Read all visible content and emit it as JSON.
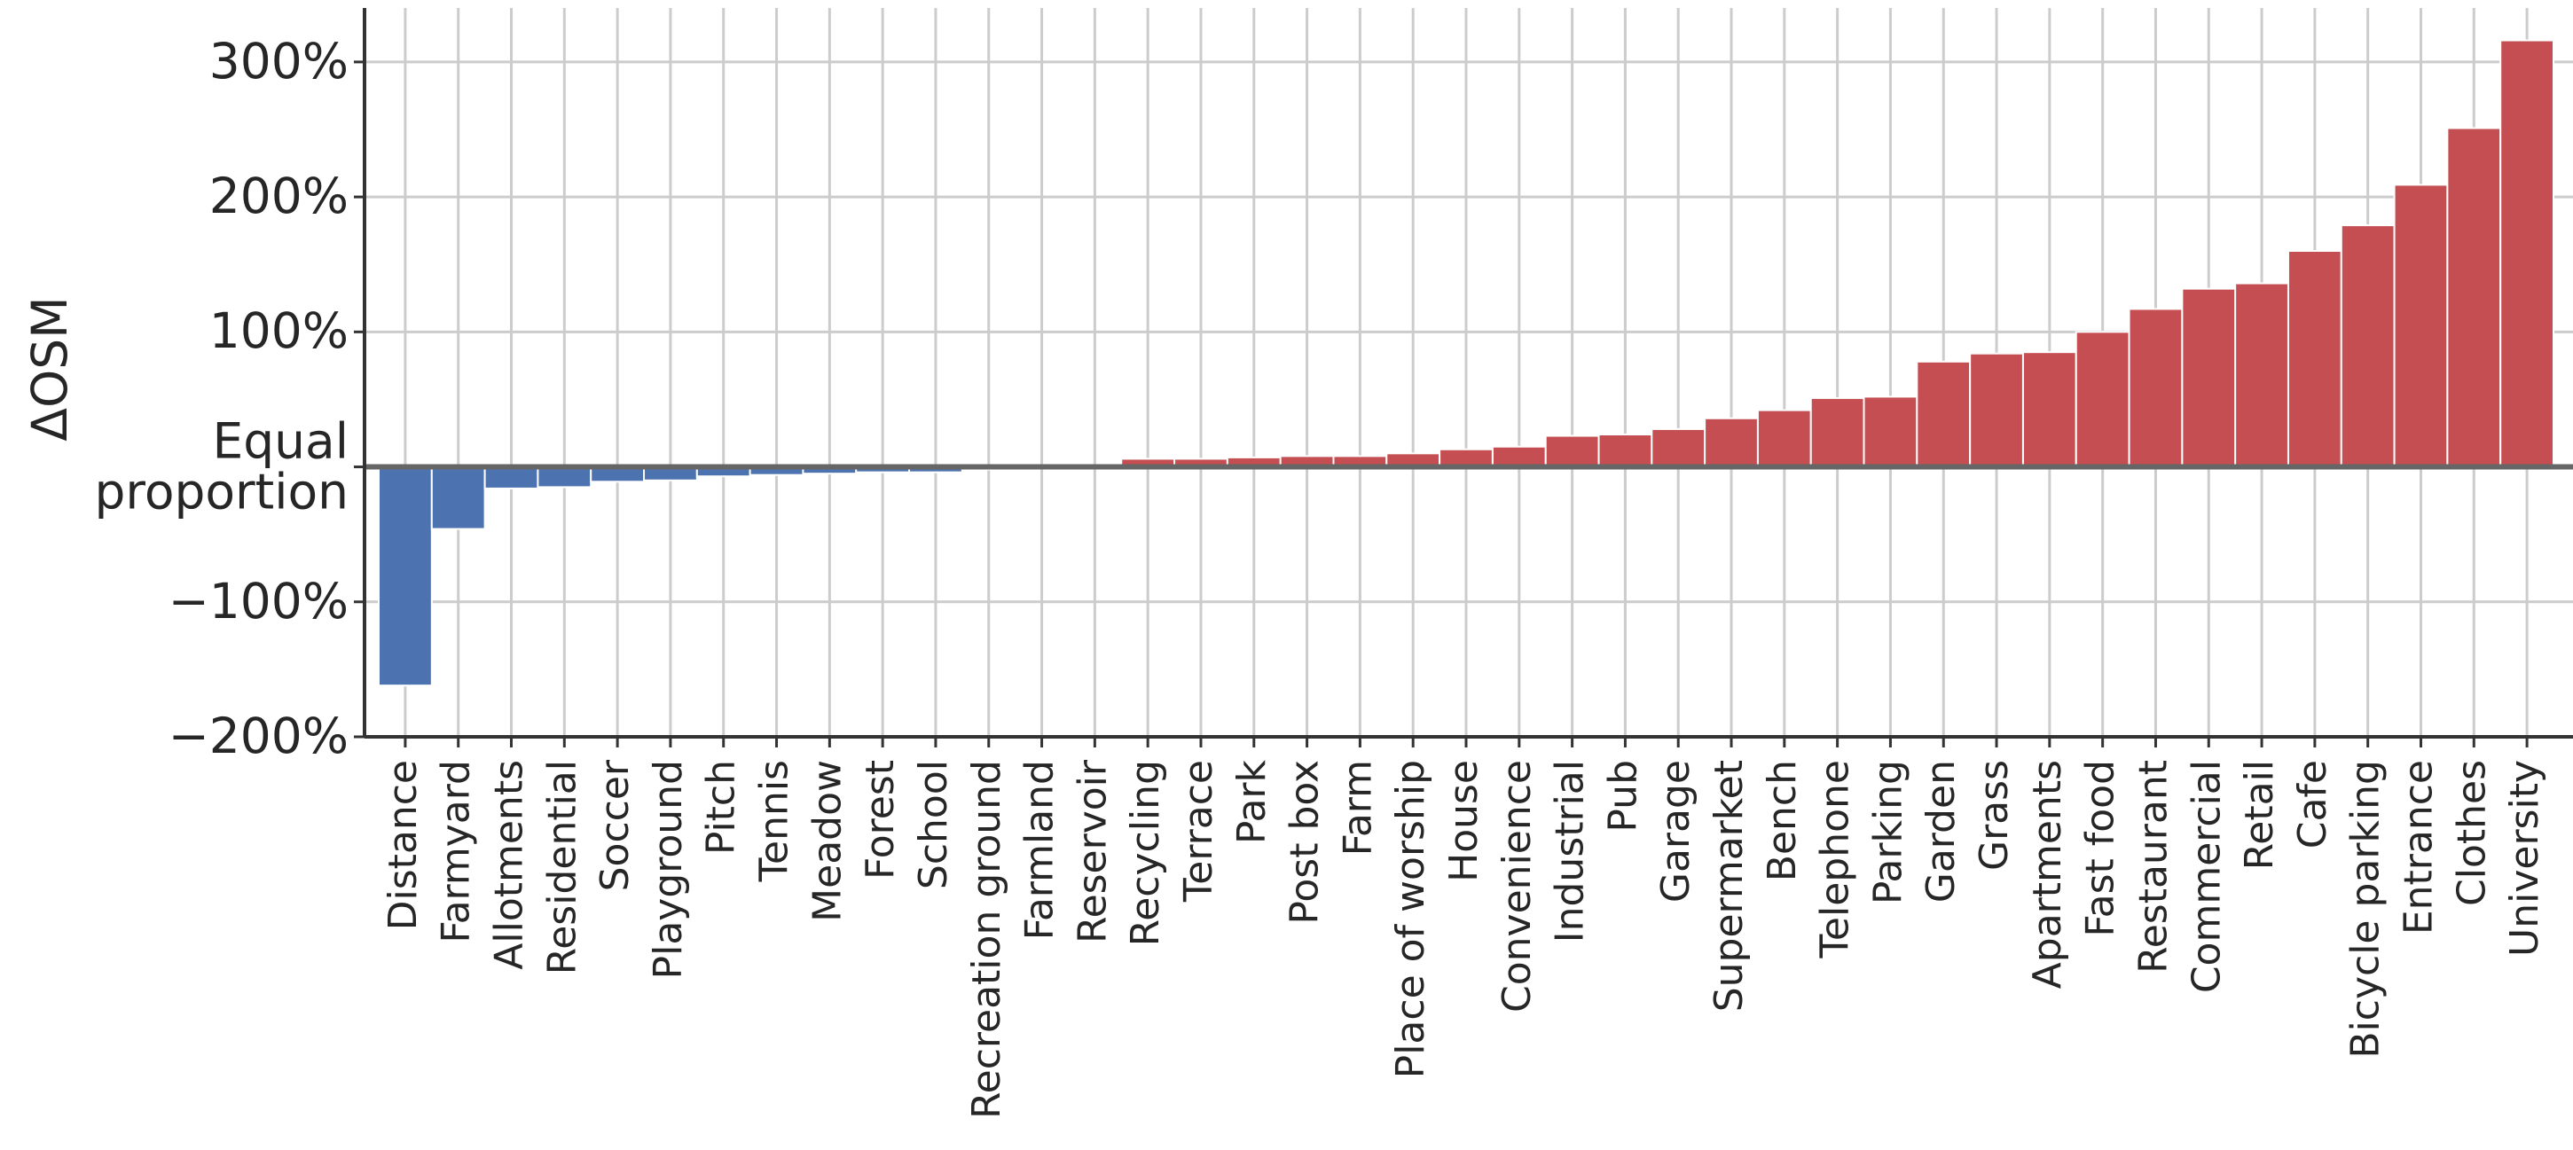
{
  "chart_data": {
    "type": "bar",
    "y_label": "ΔOSM",
    "categories": [
      "Distance",
      "Farmyard",
      "Allotments",
      "Residential",
      "Soccer",
      "Playground",
      "Pitch",
      "Tennis",
      "Meadow",
      "Forest",
      "School",
      "Recreation ground",
      "Farmland",
      "Reservoir",
      "Recycling",
      "Terrace",
      "Park",
      "Post box",
      "Farm",
      "Place of worship",
      "House",
      "Convenience",
      "Industrial",
      "Pub",
      "Garage",
      "Supermarket",
      "Bench",
      "Telephone",
      "Parking",
      "Garden",
      "Grass",
      "Apartments",
      "Fast food",
      "Restaurant",
      "Commercial",
      "Retail",
      "Cafe",
      "Bicycle parking",
      "Entrance",
      "Clothes",
      "University"
    ],
    "values": [
      -162,
      -46,
      -16,
      -15,
      -11,
      -10,
      -7,
      -6,
      -5,
      -4,
      -4,
      -2,
      -1,
      1,
      6,
      6,
      7,
      8,
      8,
      10,
      13,
      15,
      23,
      24,
      28,
      36,
      42,
      51,
      52,
      78,
      84,
      85,
      100,
      117,
      132,
      136,
      160,
      179,
      209,
      251,
      316
    ],
    "positive_color": "#c44e52",
    "negative_color": "#4c72b0",
    "ylim": [
      -200,
      340
    ],
    "yticks": [
      {
        "value": -200,
        "label": "−200%"
      },
      {
        "value": -100,
        "label": "−100%"
      },
      {
        "value": 0,
        "label": "Equal\nproportion"
      },
      {
        "value": 100,
        "label": "100%"
      },
      {
        "value": 200,
        "label": "200%"
      },
      {
        "value": 300,
        "label": "300%"
      }
    ],
    "grid": true
  }
}
